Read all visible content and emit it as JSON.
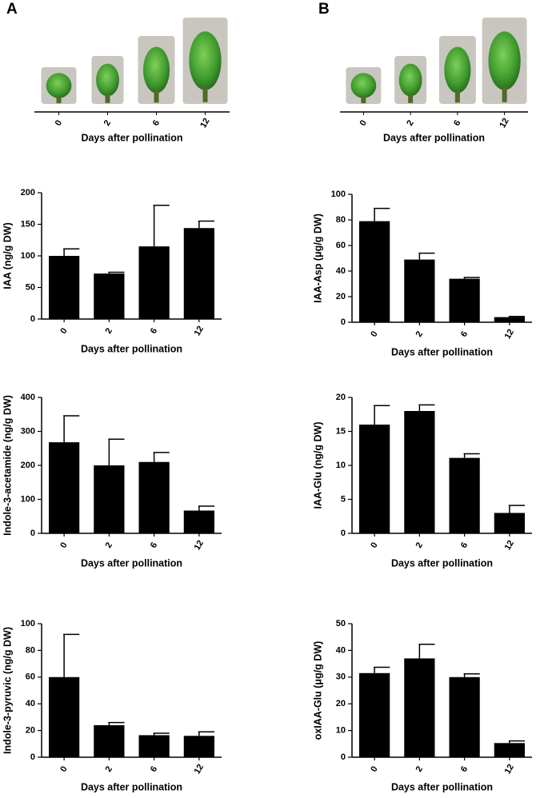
{
  "photo_strips": [
    {
      "label": "A",
      "categories": [
        "0",
        "2",
        "6",
        "12"
      ],
      "xlabel": "Days after pollination"
    },
    {
      "label": "B",
      "categories": [
        "0",
        "2",
        "6",
        "12"
      ],
      "xlabel": "Days after pollination"
    }
  ],
  "chart_data": [
    {
      "type": "bar",
      "ylabel": "IAA (ng/g DW)",
      "xlabel": "Days after pollination",
      "categories": [
        "0",
        "2",
        "6",
        "12"
      ],
      "values": [
        100,
        72,
        115,
        144
      ],
      "errors": [
        11,
        2,
        65,
        11
      ],
      "color": "#000000",
      "ylim": [
        0,
        200
      ],
      "yticks": [
        0,
        50,
        100,
        150,
        200
      ]
    },
    {
      "type": "bar",
      "ylabel": "IAA-Asp (μg/g DW)",
      "xlabel": "Days after pollination",
      "categories": [
        "0",
        "2",
        "6",
        "12"
      ],
      "values": [
        79,
        49,
        34,
        4
      ],
      "errors": [
        10,
        5,
        1,
        0.5
      ],
      "color": "#000000",
      "ylim": [
        0,
        100
      ],
      "yticks": [
        0,
        20,
        40,
        60,
        80,
        100
      ]
    },
    {
      "type": "bar",
      "ylabel": "Indole-3-acetamide (ng/g DW)",
      "xlabel": "Days after pollination",
      "categories": [
        "0",
        "2",
        "6",
        "12"
      ],
      "values": [
        268,
        200,
        210,
        67
      ],
      "errors": [
        78,
        77,
        28,
        13
      ],
      "color": "#000000",
      "ylim": [
        0,
        400
      ],
      "yticks": [
        0,
        100,
        200,
        300,
        400
      ]
    },
    {
      "type": "bar",
      "ylabel": "IAA-Glu (ng/g DW)",
      "xlabel": "Days after pollination",
      "categories": [
        "0",
        "2",
        "6",
        "12"
      ],
      "values": [
        16,
        18,
        11.1,
        3
      ],
      "errors": [
        2.8,
        0.9,
        0.6,
        1.1
      ],
      "color": "#000000",
      "ylim": [
        0,
        20
      ],
      "yticks": [
        0,
        5,
        10,
        15,
        20
      ]
    },
    {
      "type": "bar",
      "ylabel": "Indole-3-pyruvic (ng/g DW)",
      "xlabel": "Days after pollination",
      "categories": [
        "0",
        "2",
        "6",
        "12"
      ],
      "values": [
        60,
        24,
        16.5,
        16
      ],
      "errors": [
        32,
        2,
        1.5,
        3
      ],
      "color": "#000000",
      "ylim": [
        0,
        100
      ],
      "yticks": [
        0,
        20,
        40,
        60,
        80,
        100
      ]
    },
    {
      "type": "bar",
      "ylabel": "oxIAA-Glu (μg/g DW)",
      "xlabel": "Days after pollination",
      "categories": [
        "0",
        "2",
        "6",
        "12"
      ],
      "values": [
        31.5,
        37,
        30,
        5.3
      ],
      "errors": [
        2.2,
        5.3,
        1.2,
        0.8
      ],
      "color": "#000000",
      "ylim": [
        0,
        50
      ],
      "yticks": [
        0,
        10,
        20,
        30,
        40,
        50
      ]
    }
  ]
}
